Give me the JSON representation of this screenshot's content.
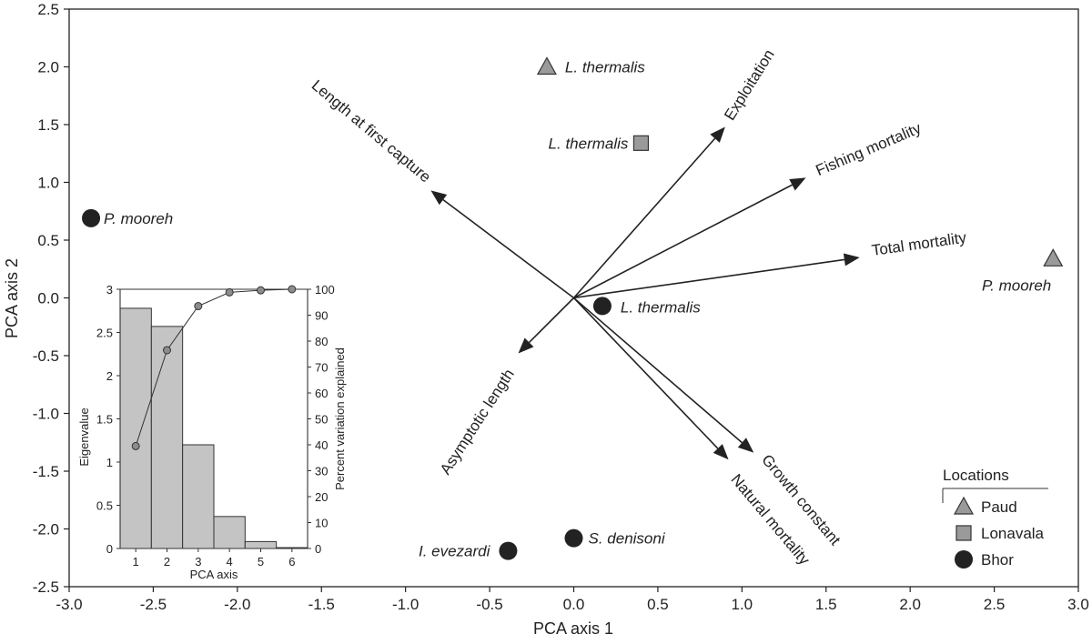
{
  "chart_data": {
    "type": "scatter",
    "subtype": "pca-biplot",
    "xlabel": "PCA axis 1",
    "ylabel": "PCA axis 2",
    "xlim": [
      -3.0,
      3.0
    ],
    "ylim": [
      -2.5,
      2.5
    ],
    "xticks": [
      "-3.0",
      "-2.5",
      "-2.0",
      "-1.5",
      "-1.0",
      "-0.5",
      "0.0",
      "0.5",
      "1.0",
      "1.5",
      "2.0",
      "2.5",
      "3.0"
    ],
    "yticks": [
      "2.5",
      "2.0",
      "1.5",
      "1.0",
      "0.5",
      "0.0",
      "-0.5",
      "-1.0",
      "-1.5",
      "-2.0",
      "-2.5"
    ],
    "grid": false,
    "points": [
      {
        "label": "L. thermalis",
        "location": "Paud",
        "x": -0.16,
        "y": 2.0
      },
      {
        "label": "L. thermalis",
        "location": "Lonavala",
        "x": 0.4,
        "y": 1.34
      },
      {
        "label": "P. mooreh",
        "location": "Bhor",
        "x": -2.87,
        "y": 0.69
      },
      {
        "label": "P. mooreh",
        "location": "Paud",
        "x": 2.85,
        "y": 0.34
      },
      {
        "label": "L. thermalis",
        "location": "Bhor",
        "x": 0.17,
        "y": -0.07
      },
      {
        "label": "S. denisoni",
        "location": "Bhor",
        "x": 0.0,
        "y": -2.08
      },
      {
        "label": "I. evezardi",
        "location": "Bhor",
        "x": -0.39,
        "y": -2.19
      }
    ],
    "vectors": [
      {
        "label": "Length at first capture",
        "x": -0.85,
        "y": 0.93
      },
      {
        "label": "Exploitation",
        "x": 0.9,
        "y": 1.48
      },
      {
        "label": "Fishing mortality",
        "x": 1.38,
        "y": 1.04
      },
      {
        "label": "Total mortality",
        "x": 1.7,
        "y": 0.35
      },
      {
        "label": "Asymptotic length",
        "x": -0.33,
        "y": -0.48
      },
      {
        "label": "Growth constant",
        "x": 1.07,
        "y": -1.34
      },
      {
        "label": "Natural mortality",
        "x": 0.92,
        "y": -1.4
      }
    ],
    "legend": {
      "title": "Locations",
      "position": "bottom-right",
      "items": [
        {
          "label": "Paud",
          "marker": "triangle",
          "color": "#9a9a9a"
        },
        {
          "label": "Lonavala",
          "marker": "square",
          "color": "#9a9a9a"
        },
        {
          "label": "Bhor",
          "marker": "circle",
          "color": "#222222"
        }
      ]
    },
    "inset": {
      "type": "bar+line",
      "xlabel": "PCA axis",
      "ylabel_left": "Eigenvalue",
      "ylabel_right": "Percent variation explained",
      "categories": [
        "1",
        "2",
        "3",
        "4",
        "5",
        "6"
      ],
      "eigenvalues": [
        2.78,
        2.57,
        1.2,
        0.37,
        0.08,
        0.01
      ],
      "cumulative_percent": [
        39.5,
        76.5,
        93.5,
        98.8,
        99.6,
        100
      ],
      "ylim_left": [
        0,
        3
      ],
      "ylim_right": [
        0,
        100
      ],
      "yticks_left": [
        "3",
        "2.5",
        "2",
        "1.5",
        "1",
        "0.5",
        "0"
      ],
      "yticks_right": [
        "100",
        "90",
        "80",
        "70",
        "60",
        "50",
        "40",
        "30",
        "20",
        "10",
        "0"
      ]
    },
    "colors": {
      "axis": "#222222",
      "vector": "#222222",
      "bar_fill": "#c4c4c4",
      "marker_grey": "#9a9a9a",
      "marker_dark": "#222222"
    }
  }
}
